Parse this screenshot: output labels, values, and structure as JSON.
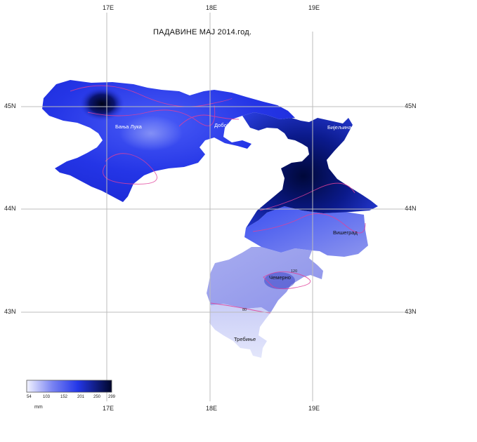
{
  "map": {
    "title": "ПАДАВИНЕ МАЈ 2014.год.",
    "longitude_labels": [
      "17E",
      "18E",
      "19E"
    ],
    "latitude_labels": [
      "45N",
      "44N",
      "43N"
    ],
    "cities": [
      {
        "id": "banja-luka",
        "label": "Бања Лука"
      },
      {
        "id": "doboj",
        "label": "Добој"
      },
      {
        "id": "bijeljina",
        "label": "Бијељина"
      },
      {
        "id": "visegrad",
        "label": "Вишеград"
      },
      {
        "id": "cemerno",
        "label": "Чемерно"
      },
      {
        "id": "trebinje",
        "label": "Требиње"
      }
    ],
    "isoline_labels": [
      "120",
      "80"
    ],
    "legend": {
      "unit": "mm",
      "ticks": [
        "54",
        "103",
        "152",
        "201",
        "250",
        "299"
      ],
      "range": [
        54,
        299
      ]
    },
    "colors": {
      "low": "#e8ecff",
      "mid": "#2b3cf0",
      "high": "#000a3c",
      "isoline": "#e0409a",
      "grid": "#bbbbbb"
    }
  }
}
